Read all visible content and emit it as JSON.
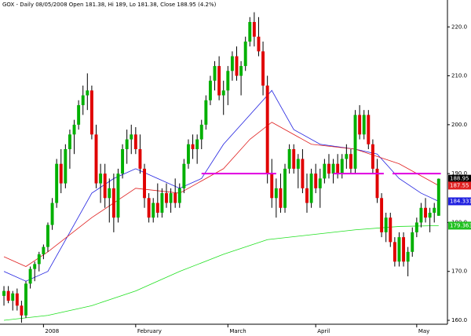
{
  "chart_data": {
    "type": "candlestick",
    "title": "GOX - Daily 08/05/2008 Open 181.38, Hi 189, Lo 181.38, Close 188.95 (4.2%)",
    "ohlc": [
      [
        165,
        167,
        163,
        166
      ],
      [
        166,
        167,
        163.5,
        164
      ],
      [
        164,
        166,
        162,
        165.5
      ],
      [
        165.5,
        166.5,
        162,
        163
      ],
      [
        163,
        164,
        159.5,
        161
      ],
      [
        161,
        168,
        160.5,
        167.5
      ],
      [
        167.5,
        171,
        166.5,
        170.5
      ],
      [
        170.5,
        172,
        168,
        171.5
      ],
      [
        171.5,
        174,
        170,
        173.5
      ],
      [
        173.5,
        175.5,
        172.5,
        175
      ],
      [
        175,
        180,
        174,
        179.5
      ],
      [
        179.5,
        185,
        178.5,
        184
      ],
      [
        184,
        193,
        183,
        192
      ],
      [
        192,
        195,
        186,
        188
      ],
      [
        188,
        196,
        187,
        195
      ],
      [
        195,
        199,
        191,
        198
      ],
      [
        198,
        201,
        194,
        200
      ],
      [
        200,
        205,
        199,
        204
      ],
      [
        204,
        208,
        202,
        206
      ],
      [
        206,
        210.5,
        203,
        207
      ],
      [
        207,
        208,
        197,
        198
      ],
      [
        198,
        200,
        187,
        188
      ],
      [
        188,
        192,
        184,
        190
      ],
      [
        190,
        192,
        183,
        185
      ],
      [
        185,
        189,
        180,
        187
      ],
      [
        187,
        190,
        178,
        181
      ],
      [
        181,
        191,
        180,
        190
      ],
      [
        190,
        196,
        189,
        195
      ],
      [
        195,
        199,
        192,
        197
      ],
      [
        197,
        200,
        194,
        198
      ],
      [
        198,
        199.5,
        194,
        195
      ],
      [
        195,
        198,
        190,
        191
      ],
      [
        191,
        192,
        183,
        185
      ],
      [
        185,
        186,
        180,
        181
      ],
      [
        181,
        185,
        180,
        184
      ],
      [
        184,
        188,
        181,
        182
      ],
      [
        182,
        187,
        181,
        186
      ],
      [
        186,
        188,
        183,
        184
      ],
      [
        184,
        187,
        182,
        186
      ],
      [
        186,
        189,
        183,
        184
      ],
      [
        184,
        188,
        183,
        187
      ],
      [
        187,
        193,
        186,
        192
      ],
      [
        192,
        197,
        191,
        196
      ],
      [
        196,
        198,
        193,
        195
      ],
      [
        195,
        198,
        192,
        197
      ],
      [
        197,
        201,
        195,
        200
      ],
      [
        200,
        206,
        199,
        205
      ],
      [
        205,
        210,
        204,
        209
      ],
      [
        209,
        213,
        207,
        212
      ],
      [
        212,
        214,
        205,
        206
      ],
      [
        206,
        209,
        202,
        207
      ],
      [
        207,
        212,
        204,
        211
      ],
      [
        211,
        215,
        209,
        214
      ],
      [
        214,
        216,
        209,
        210
      ],
      [
        210,
        213,
        206,
        212
      ],
      [
        212,
        218,
        211,
        217
      ],
      [
        217,
        222,
        216,
        221
      ],
      [
        221,
        223,
        216,
        218
      ],
      [
        218,
        222,
        214,
        215
      ],
      [
        215,
        217,
        206,
        208
      ],
      [
        208,
        210,
        188,
        190
      ],
      [
        190,
        193,
        183,
        185
      ],
      [
        185,
        189,
        181,
        187
      ],
      [
        187,
        190,
        182,
        183
      ],
      [
        183,
        192,
        182,
        191
      ],
      [
        191,
        196,
        190,
        195
      ],
      [
        195,
        196,
        190,
        191
      ],
      [
        191,
        194,
        187,
        193
      ],
      [
        193,
        195,
        186,
        187
      ],
      [
        187,
        190,
        182,
        184
      ],
      [
        184,
        191,
        183,
        190
      ],
      [
        190,
        192,
        186,
        187
      ],
      [
        187,
        191,
        183,
        189
      ],
      [
        189,
        193,
        188,
        192
      ],
      [
        192,
        194,
        189,
        190
      ],
      [
        190,
        193,
        188,
        192
      ],
      [
        192,
        194,
        189,
        190
      ],
      [
        190,
        194,
        189,
        193
      ],
      [
        193,
        196,
        191,
        194
      ],
      [
        194,
        195,
        190,
        191
      ],
      [
        191,
        203,
        190,
        202
      ],
      [
        202,
        204,
        197,
        198
      ],
      [
        198,
        203,
        197,
        202
      ],
      [
        202,
        203,
        195,
        196
      ],
      [
        196,
        197,
        190,
        191
      ],
      [
        191,
        193,
        184,
        185
      ],
      [
        185,
        186,
        177,
        178
      ],
      [
        178,
        182,
        176,
        181
      ],
      [
        181,
        182,
        175,
        176
      ],
      [
        176,
        177,
        171,
        172
      ],
      [
        172,
        178,
        171,
        177
      ],
      [
        177,
        178,
        171,
        172
      ],
      [
        172,
        175,
        169,
        174
      ],
      [
        174,
        179,
        173,
        178
      ],
      [
        178,
        181,
        177,
        180
      ],
      [
        180,
        184,
        179,
        183
      ],
      [
        183,
        185,
        180,
        181
      ],
      [
        181,
        183,
        178,
        182
      ],
      [
        182,
        184,
        180,
        183
      ],
      [
        181.38,
        189,
        181.38,
        188.95
      ]
    ],
    "up_color": "#00b000",
    "down_color": "#e00000",
    "overlays": [
      {
        "color": "#2020e0",
        "x": [
          0,
          5,
          10,
          15,
          20,
          25,
          30,
          35,
          40,
          45,
          50,
          55,
          61,
          66,
          72,
          80,
          85,
          90,
          95,
          99
        ],
        "values": [
          170,
          168,
          170,
          178,
          186,
          189,
          191,
          189,
          187,
          189,
          196,
          201,
          207,
          199,
          196,
          195,
          194,
          189,
          186,
          184.331
        ]
      },
      {
        "color": "#e02020",
        "x": [
          0,
          5,
          10,
          20,
          30,
          40,
          50,
          56,
          61,
          70,
          80,
          90,
          99
        ],
        "values": [
          173,
          171,
          174,
          181,
          187,
          186,
          191,
          197,
          200.5,
          196,
          195,
          192,
          187.55
        ]
      },
      {
        "color": "#20e020",
        "x": [
          0,
          10,
          20,
          30,
          40,
          50,
          60,
          70,
          80,
          90,
          99
        ],
        "values": [
          160,
          161,
          163,
          166,
          170,
          173.5,
          176.5,
          177.5,
          178.5,
          179.2,
          179.363
        ]
      }
    ],
    "hlines": [
      {
        "from": 45,
        "to": 62,
        "value": 190
      },
      {
        "from": 75,
        "to": 86.5,
        "value": 190
      },
      {
        "from": 88.5,
        "to": 99.5,
        "value": 190
      }
    ],
    "hline_color": "#e000e0",
    "end_labels": [
      {
        "value": 188.95,
        "label": "188.95",
        "color": "#000000"
      },
      {
        "value": 187.55,
        "label": "187.55",
        "color": "#e02020"
      },
      {
        "value": 184.331,
        "label": "184.331",
        "color": "#2020e0"
      },
      {
        "value": 179.363,
        "label": "179.363",
        "color": "#20c020"
      }
    ],
    "xlim": [
      -0.9,
      101
    ],
    "xticks": [
      {
        "value": 9,
        "label": "2008"
      },
      {
        "value": 30,
        "label": "February"
      },
      {
        "value": 51,
        "label": "March"
      },
      {
        "value": 71,
        "label": "April"
      },
      {
        "value": 94,
        "label": "May"
      }
    ],
    "ylim": [
      159.2,
      225.5
    ],
    "yticks": [
      {
        "value": 160,
        "label": "160.0"
      },
      {
        "value": 170,
        "label": "170.0"
      },
      {
        "value": 180,
        "label": "180.0"
      },
      {
        "value": 190,
        "label": "190.0"
      },
      {
        "value": 200,
        "label": "200.0"
      },
      {
        "value": 210,
        "label": "210.0"
      },
      {
        "value": 220,
        "label": "220.0"
      }
    ]
  }
}
